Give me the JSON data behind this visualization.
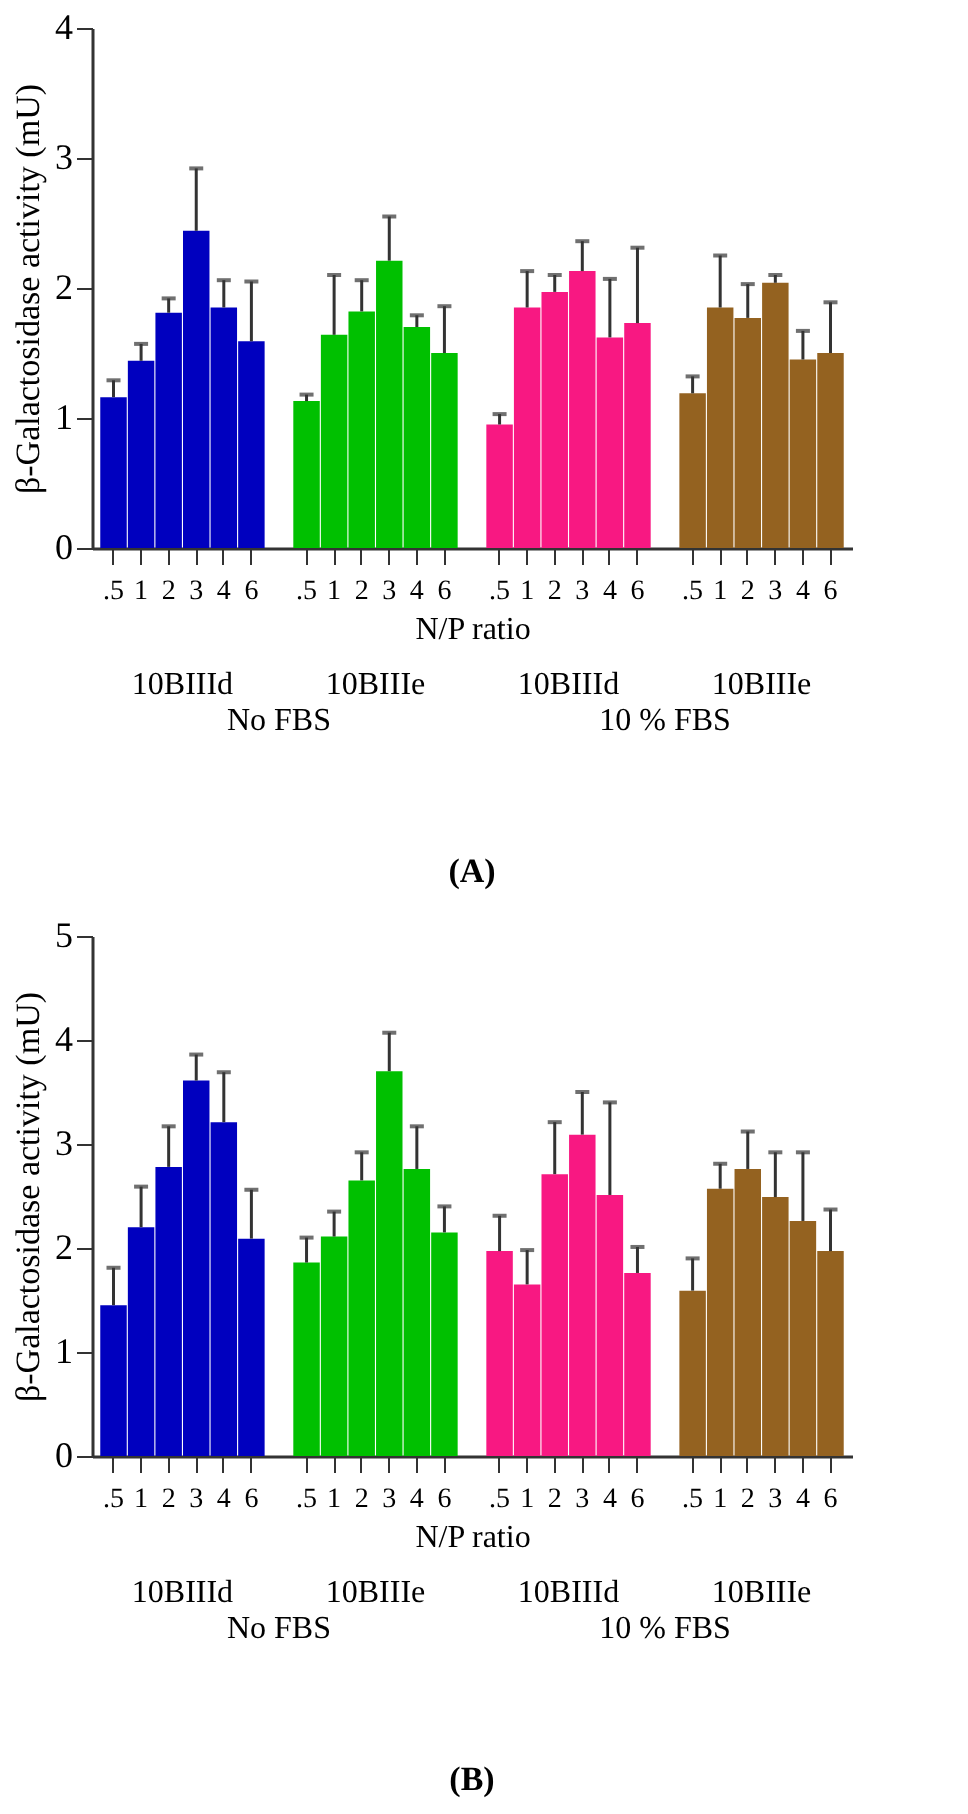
{
  "chart_data": [
    {
      "type": "bar",
      "title": "(A)",
      "ylabel": "β-Galactosidase activity (mU)",
      "xlabel": "N/P ratio",
      "categories": [
        ".5",
        "1",
        "2",
        "3",
        "4",
        "6",
        ".5",
        "1",
        "2",
        "3",
        "4",
        "6",
        ".5",
        "1",
        "2",
        "3",
        "4",
        "6",
        ".5",
        "1",
        "2",
        "3",
        "4",
        "6"
      ],
      "values": [
        1.16,
        1.44,
        1.81,
        2.44,
        1.85,
        1.59,
        1.13,
        1.64,
        1.82,
        2.21,
        1.7,
        1.5,
        0.95,
        1.85,
        1.97,
        2.13,
        1.62,
        1.73,
        1.19,
        1.85,
        1.77,
        2.04,
        1.45,
        1.5
      ],
      "colors": [
        "#0000bf",
        "#0000bf",
        "#0000bf",
        "#0000bf",
        "#0000bf",
        "#0000bf",
        "#00c000",
        "#00c000",
        "#00c000",
        "#00c000",
        "#00c000",
        "#00c000",
        "#f81882",
        "#f81882",
        "#f81882",
        "#f81882",
        "#f81882",
        "#f81882",
        "#946220",
        "#946220",
        "#946220",
        "#946220",
        "#946220",
        "#946220"
      ],
      "errors": [
        [
          1.16,
          1.29
        ],
        [
          1.44,
          1.57
        ],
        [
          1.81,
          1.92
        ],
        [
          2.44,
          2.92
        ],
        [
          1.85,
          2.06
        ],
        [
          1.59,
          2.05
        ],
        [
          1.13,
          1.18
        ],
        [
          1.64,
          2.1
        ],
        [
          1.82,
          2.06
        ],
        [
          2.21,
          2.55
        ],
        [
          1.7,
          1.79
        ],
        [
          1.5,
          1.86
        ],
        [
          0.95,
          1.03
        ],
        [
          1.85,
          2.13
        ],
        [
          1.97,
          2.1
        ],
        [
          2.13,
          2.36
        ],
        [
          1.62,
          2.07
        ],
        [
          1.73,
          2.31
        ],
        [
          1.19,
          1.32
        ],
        [
          1.85,
          2.25
        ],
        [
          1.77,
          2.03
        ],
        [
          2.04,
          2.1
        ],
        [
          1.45,
          1.67
        ],
        [
          1.5,
          1.89
        ]
      ],
      "ylim": [
        0,
        4
      ],
      "yticks": [
        0,
        1,
        2,
        3,
        4
      ],
      "annotations": [
        "10BIIId",
        "10BIIIe",
        "10BIIId",
        "10BIIIe",
        "No FBS",
        "10 % FBS"
      ]
    },
    {
      "type": "bar",
      "title": "(B)",
      "ylabel": "β-Galactosidase activity (mU)",
      "xlabel": "N/P ratio",
      "categories": [
        ".5",
        "1",
        "2",
        "3",
        "4",
        "6",
        ".5",
        "1",
        "2",
        "3",
        "4",
        "6",
        ".5",
        "1",
        "2",
        "3",
        "4",
        "6",
        ".5",
        "1",
        "2",
        "3",
        "4",
        "6"
      ],
      "values": [
        1.45,
        2.2,
        2.78,
        3.61,
        3.21,
        2.09,
        1.86,
        2.11,
        2.65,
        3.7,
        2.76,
        2.15,
        1.97,
        1.65,
        2.71,
        3.09,
        2.51,
        1.76,
        1.59,
        2.57,
        2.76,
        2.49,
        2.26,
        1.97
      ],
      "colors": [
        "#0000bf",
        "#0000bf",
        "#0000bf",
        "#0000bf",
        "#0000bf",
        "#0000bf",
        "#00c000",
        "#00c000",
        "#00c000",
        "#00c000",
        "#00c000",
        "#00c000",
        "#f81882",
        "#f81882",
        "#f81882",
        "#f81882",
        "#f81882",
        "#f81882",
        "#946220",
        "#946220",
        "#946220",
        "#946220",
        "#946220",
        "#946220"
      ],
      "errors": [
        [
          1.45,
          1.81
        ],
        [
          2.2,
          2.59
        ],
        [
          2.78,
          3.17
        ],
        [
          3.61,
          3.86
        ],
        [
          3.21,
          3.69
        ],
        [
          2.09,
          2.56
        ],
        [
          1.86,
          2.1
        ],
        [
          2.11,
          2.35
        ],
        [
          2.65,
          2.92
        ],
        [
          3.7,
          4.07
        ],
        [
          2.76,
          3.17
        ],
        [
          2.15,
          2.4
        ],
        [
          1.97,
          2.31
        ],
        [
          1.65,
          1.98
        ],
        [
          2.71,
          3.21
        ],
        [
          3.09,
          3.5
        ],
        [
          2.51,
          3.4
        ],
        [
          1.76,
          2.01
        ],
        [
          1.59,
          1.9
        ],
        [
          2.57,
          2.81
        ],
        [
          2.76,
          3.12
        ],
        [
          2.49,
          2.92
        ],
        [
          2.26,
          2.92
        ],
        [
          1.97,
          2.37
        ]
      ],
      "ylim": [
        0,
        5
      ],
      "yticks": [
        0,
        1,
        2,
        3,
        4,
        5
      ],
      "annotations": [
        "10BIIId",
        "10BIIIe",
        "10BIIId",
        "10BIIIe",
        "No FBS",
        "10 % FBS"
      ]
    }
  ]
}
